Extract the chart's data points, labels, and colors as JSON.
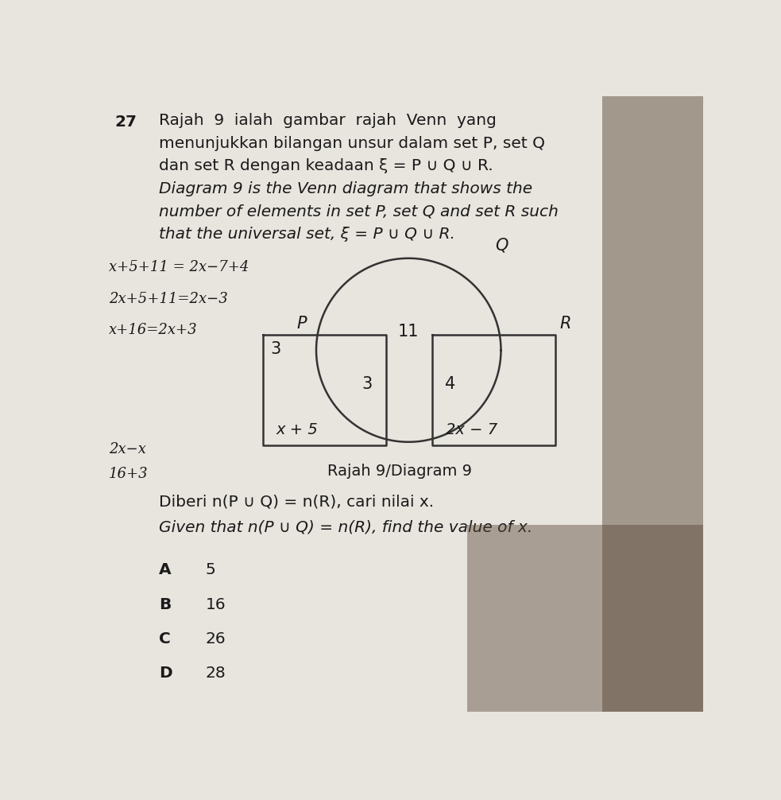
{
  "bg_color": "#e8e4de",
  "question_number": "27",
  "malay_line1": "Rajah  9  ialah  gambar  rajah  Venn  yang",
  "malay_line2": "menunjukkan bilangan unsur dalam set P, set Q",
  "malay_line3": "dan set R dengan keadaan ξ = P ∪ Q ∪ R.",
  "eng_line1": "Diagram 9 is the Venn diagram that shows the",
  "eng_line2": "number of elements in set P, set Q and set R such",
  "eng_line3": "that the universal set, ξ = P ∪ Q ∪ R.",
  "diagram_label": "Rajah 9/Diagram 9",
  "label_P": "P",
  "label_Q": "Q",
  "label_R": "R",
  "val_P_only_top": "3",
  "val_P_bottom": "x + 5",
  "val_P_circle_intersect": "3",
  "val_center": "11",
  "val_R_circle_intersect": "4",
  "val_R_bottom": "2x − 7",
  "hw1": "x+5+11 = 2x−7+4",
  "hw2": "2x+5+11=2x−3",
  "hw3": "x+16=2x+3",
  "hw4": "2x−x",
  "hw5": "16+3",
  "sub_malay": "Diberi n(P ∪ Q) = n(R), cari nilai x.",
  "sub_eng": "Given that n(P ∪ Q) = n(R), find the value of x.",
  "opt_A": "5",
  "opt_B": "16",
  "opt_C": "26",
  "opt_D": "28",
  "text_color": "#1a1a1a",
  "line_color": "#333333"
}
